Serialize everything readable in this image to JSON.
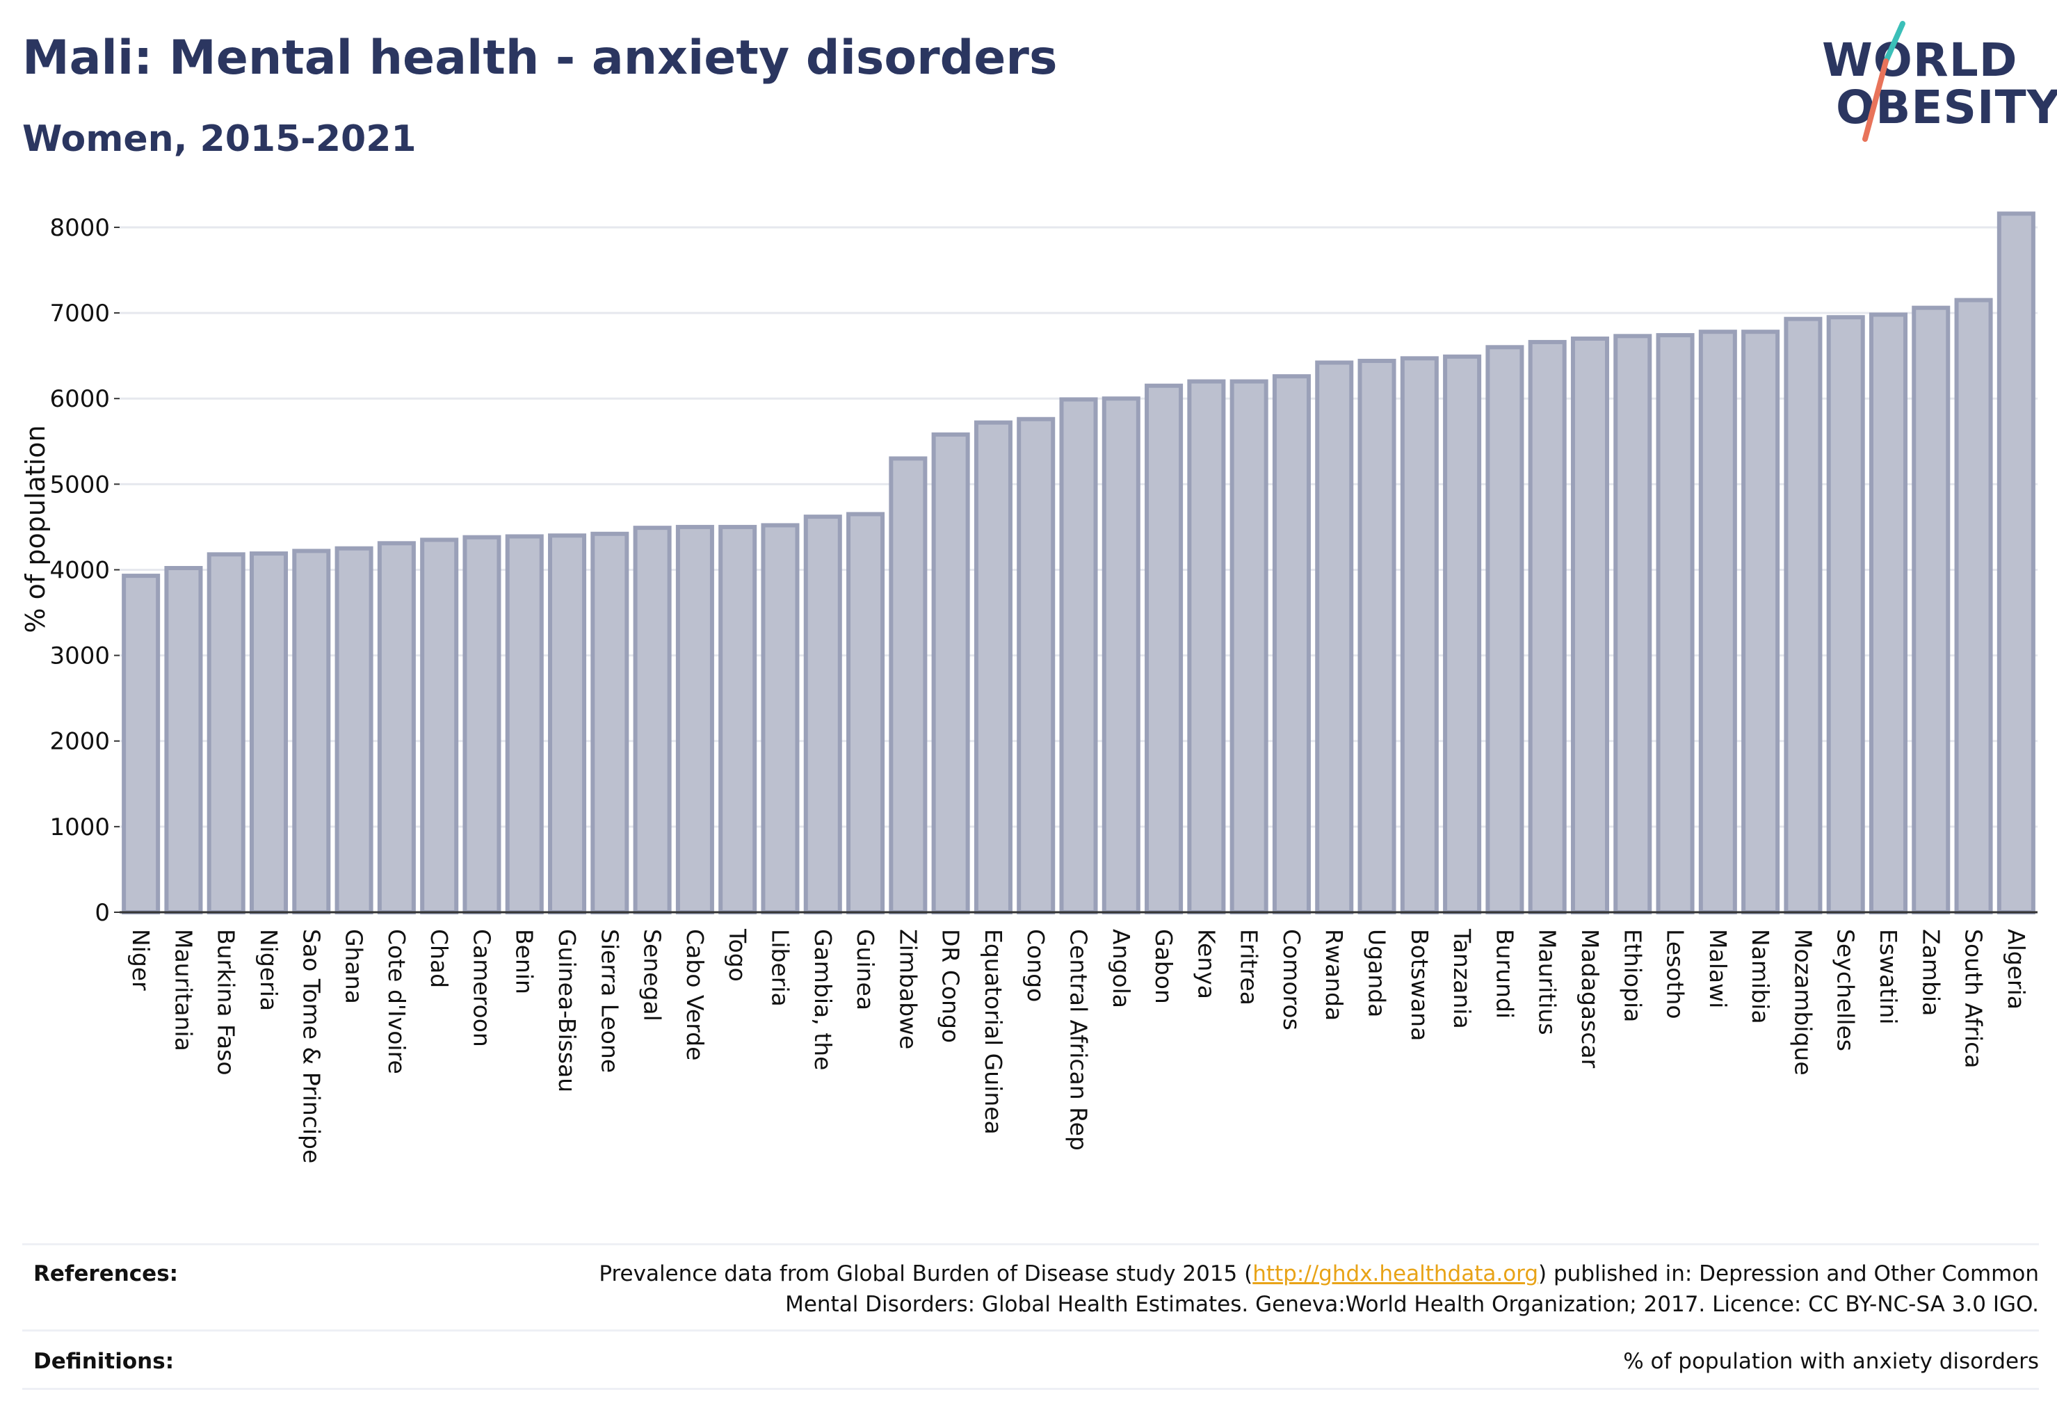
{
  "title": "Mali: Mental health - anxiety disorders",
  "subtitle": "Women, 2015-2021",
  "logo": {
    "line1": "WORLD",
    "line2": "OBESITY"
  },
  "colors": {
    "title": "#2b3660",
    "bar_fill": "#bcc0cf",
    "bar_stroke": "#9aa0b8",
    "grid": "#e6e8ee",
    "link": "#e8a317",
    "logo_slash_top": "#3bbfb8",
    "logo_slash_bottom": "#e8735a"
  },
  "chart_data": {
    "type": "bar",
    "ylabel": "% of population",
    "ylim": [
      0,
      8300
    ],
    "yticks": [
      0,
      1000,
      2000,
      3000,
      4000,
      5000,
      6000,
      7000,
      8000
    ],
    "grid": true,
    "categories": [
      "Niger",
      "Mauritania",
      "Burkina Faso",
      "Nigeria",
      "Sao Tome & Principe",
      "Ghana",
      "Cote d'Ivoire",
      "Chad",
      "Cameroon",
      "Benin",
      "Guinea-Bissau",
      "Sierra Leone",
      "Senegal",
      "Cabo Verde",
      "Togo",
      "Liberia",
      "Gambia, the",
      "Guinea",
      "Zimbabwe",
      "DR Congo",
      "Equatorial Guinea",
      "Congo",
      "Central African Rep",
      "Angola",
      "Gabon",
      "Kenya",
      "Eritrea",
      "Comoros",
      "Rwanda",
      "Uganda",
      "Botswana",
      "Tanzania",
      "Burundi",
      "Mauritius",
      "Madagascar",
      "Ethiopia",
      "Lesotho",
      "Malawi",
      "Namibia",
      "Mozambique",
      "Seychelles",
      "Eswatini",
      "Zambia",
      "South Africa",
      "Algeria"
    ],
    "values": [
      3930,
      4020,
      4180,
      4190,
      4220,
      4250,
      4310,
      4350,
      4380,
      4390,
      4400,
      4420,
      4490,
      4500,
      4500,
      4520,
      4620,
      4650,
      5300,
      5580,
      5720,
      5760,
      5990,
      6000,
      6150,
      6200,
      6200,
      6260,
      6420,
      6440,
      6470,
      6490,
      6600,
      6660,
      6700,
      6730,
      6740,
      6780,
      6780,
      6930,
      6950,
      6980,
      7060,
      7150,
      8160
    ]
  },
  "footer": {
    "references_label": "References:",
    "references_text_before": "Prevalence data from Global Burden of Disease study 2015 (",
    "references_link": "http://ghdx.healthdata.org",
    "references_text_after": ") published in: Depression and Other Common",
    "references_line2": "Mental Disorders: Global Health Estimates. Geneva:World Health Organization; 2017. Licence: CC BY-NC-SA 3.0 IGO.",
    "definitions_label": "Definitions:",
    "definitions_text": "% of population with anxiety disorders"
  }
}
